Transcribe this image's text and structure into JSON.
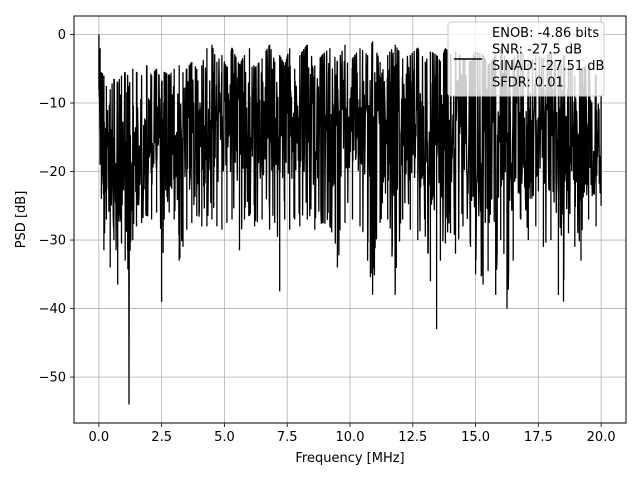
{
  "chart_data": {
    "type": "line",
    "title": "",
    "xlabel": "Frequency [MHz]",
    "ylabel": "PSD [dB]",
    "xlim": [
      -0.99,
      20.99
    ],
    "ylim": [
      -56.7,
      2.7
    ],
    "xticks": [
      0.0,
      2.5,
      5.0,
      7.5,
      10.0,
      12.5,
      15.0,
      17.5,
      20.0
    ],
    "xtick_labels": [
      "0.0",
      "2.5",
      "5.0",
      "7.5",
      "10.0",
      "12.5",
      "15.0",
      "17.5",
      "20.0"
    ],
    "yticks": [
      0,
      -10,
      -20,
      -30,
      -40,
      -50
    ],
    "ytick_labels": [
      "0",
      "−10",
      "−20",
      "−30",
      "−40",
      "−50"
    ],
    "grid": true,
    "legend_position": "top-right",
    "series": [
      {
        "name": "ENOB: -4.86 bits\nSNR: -27.5 dB\nSINAD: -27.51 dB\nSFDR: 0.01",
        "color": "#000000",
        "x": [
          0.0,
          0.05,
          0.1,
          0.2,
          0.3,
          0.45,
          0.6,
          0.75,
          0.9,
          1.05,
          1.15,
          1.2,
          1.35,
          1.5,
          1.7,
          1.9,
          2.1,
          2.3,
          2.5,
          2.6,
          2.8,
          3.0,
          3.2,
          3.35,
          3.5,
          3.7,
          3.9,
          4.1,
          4.3,
          4.5,
          4.7,
          4.9,
          5.1,
          5.3,
          5.6,
          5.8,
          6.0,
          6.2,
          6.5,
          6.8,
          7.0,
          7.2,
          7.4,
          7.6,
          7.8,
          8.0,
          8.3,
          8.6,
          8.9,
          9.2,
          9.5,
          9.8,
          10.1,
          10.4,
          10.7,
          10.9,
          11.2,
          11.5,
          11.8,
          12.1,
          12.4,
          12.7,
          13.0,
          13.2,
          13.45,
          13.6,
          13.8,
          14.0,
          14.2,
          14.5,
          14.8,
          15.0,
          15.3,
          15.5,
          15.8,
          16.0,
          16.25,
          16.5,
          16.8,
          17.1,
          17.4,
          17.7,
          18.0,
          18.3,
          18.5,
          18.7,
          18.95,
          19.2,
          19.5,
          19.8,
          20.0
        ],
        "y_high": [
          0.0,
          -2.0,
          -5.5,
          -6.0,
          -7.5,
          -8.0,
          -6.5,
          -7.0,
          -6.0,
          -5.5,
          -6.0,
          -7.5,
          -5.0,
          -5.5,
          -6.0,
          -4.5,
          -6.0,
          -5.0,
          -7.0,
          -5.5,
          -6.0,
          -5.0,
          -4.5,
          -5.5,
          -5.0,
          -4.0,
          -5.0,
          -4.5,
          -2.0,
          -1.5,
          -4.0,
          -3.0,
          -5.0,
          -2.0,
          -4.5,
          -3.0,
          -2.0,
          -5.0,
          -3.5,
          -1.5,
          -4.0,
          -3.0,
          -4.5,
          -2.0,
          -5.0,
          -3.0,
          -1.5,
          -4.5,
          -3.0,
          -2.0,
          -4.0,
          -1.5,
          -3.5,
          -2.0,
          -3.0,
          -1.0,
          -4.0,
          -3.0,
          -1.5,
          -3.5,
          -3.0,
          -2.0,
          -4.0,
          -2.5,
          -3.0,
          -4.0,
          -2.0,
          -3.0,
          -2.5,
          -3.5,
          -4.0,
          -2.5,
          -3.0,
          -4.5,
          -3.0,
          -2.0,
          -4.0,
          -3.5,
          -2.0,
          -4.5,
          -3.0,
          -3.5,
          -2.5,
          -5.0,
          -3.0,
          -4.0,
          -6.0,
          -5.0,
          -4.5,
          -6.0,
          -9.0
        ],
        "y_low": [
          -8.0,
          -19.0,
          -24.0,
          -31.5,
          -27.0,
          -34.0,
          -30.0,
          -36.5,
          -30.5,
          -33.0,
          -31.5,
          -54.0,
          -30.0,
          -28.0,
          -27.5,
          -26.5,
          -27.0,
          -26.0,
          -39.0,
          -27.0,
          -26.0,
          -27.0,
          -33.0,
          -31.0,
          -28.5,
          -27.5,
          -26.5,
          -28.0,
          -28.0,
          -27.0,
          -28.0,
          -28.5,
          -27.5,
          -27.0,
          -31.5,
          -27.0,
          -26.5,
          -28.0,
          -27.0,
          -28.5,
          -27.5,
          -37.5,
          -27.0,
          -28.5,
          -27.0,
          -28.0,
          -27.0,
          -28.5,
          -27.5,
          -28.0,
          -34.0,
          -27.5,
          -27.0,
          -28.0,
          -33.0,
          -38.0,
          -27.5,
          -27.0,
          -38.0,
          -27.0,
          -28.5,
          -30.0,
          -29.5,
          -36.0,
          -43.0,
          -33.0,
          -30.5,
          -29.0,
          -32.0,
          -28.0,
          -31.0,
          -35.0,
          -36.5,
          -34.5,
          -38.0,
          -30.0,
          -40.0,
          -33.0,
          -27.0,
          -30.0,
          -28.0,
          -31.0,
          -30.0,
          -38.0,
          -39.0,
          -29.0,
          -31.0,
          -33.0,
          -27.0,
          -28.0,
          -25.0
        ],
        "y_mid": [
          -3.0,
          -12.0,
          -15.0,
          -18.0,
          -17.0,
          -19.0,
          -18.0,
          -20.0,
          -18.5,
          -19.0,
          -18.0,
          -22.0,
          -17.5,
          -17.0,
          -16.5,
          -16.0,
          -16.5,
          -15.5,
          -18.0,
          -16.0,
          -15.5,
          -15.0,
          -16.0,
          -15.5,
          -15.0,
          -14.5,
          -14.0,
          -14.5,
          -13.0,
          -12.5,
          -14.0,
          -13.5,
          -14.0,
          -12.5,
          -14.0,
          -13.0,
          -12.0,
          -14.0,
          -13.0,
          -12.5,
          -13.5,
          -15.0,
          -13.5,
          -12.5,
          -14.0,
          -13.0,
          -12.0,
          -14.0,
          -13.0,
          -12.5,
          -15.0,
          -12.5,
          -13.0,
          -12.0,
          -14.0,
          -15.0,
          -13.5,
          -13.0,
          -14.5,
          -13.0,
          -13.5,
          -14.0,
          -14.5,
          -15.0,
          -17.0,
          -15.0,
          -14.0,
          -14.5,
          -14.5,
          -14.0,
          -15.0,
          -15.5,
          -16.0,
          -16.0,
          -16.5,
          -15.0,
          -17.0,
          -16.0,
          -14.0,
          -15.5,
          -15.0,
          -16.0,
          -15.5,
          -17.0,
          -17.5,
          -16.0,
          -17.0,
          -17.0,
          -15.0,
          -16.0,
          -16.0
        ]
      }
    ]
  }
}
